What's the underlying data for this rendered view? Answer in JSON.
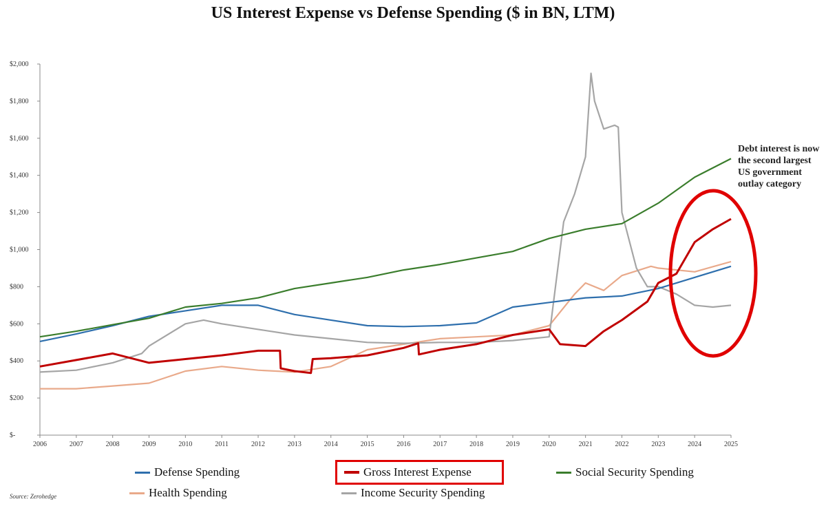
{
  "chart_data": {
    "type": "line",
    "title": "US Interest Expense vs Defense Spending ($ in BN, LTM)",
    "xlabel": "",
    "ylabel": "",
    "xlim": [
      2006,
      2025
    ],
    "ylim": [
      0,
      2000
    ],
    "y_ticks": [
      0,
      200,
      400,
      600,
      800,
      1000,
      1200,
      1400,
      1600,
      1800,
      2000
    ],
    "y_tick_labels": [
      "$-",
      "$200",
      "$400",
      "$600",
      "$800",
      "$1,000",
      "$1,200",
      "$1,400",
      "$1,600",
      "$1,800",
      "$2,000"
    ],
    "x_tick_labels": [
      "2006",
      "2007",
      "2008",
      "2009",
      "2010",
      "2011",
      "2012",
      "2013",
      "2014",
      "2015",
      "2016",
      "2017",
      "2018",
      "2019",
      "2020",
      "2021",
      "2022",
      "2023",
      "2024",
      "2025"
    ],
    "annotation": "Debt interest is now the second largest US government outlay category",
    "highlight": "red ellipse around 2023.5–2025 region",
    "series": [
      {
        "name": "Defense Spending",
        "color": "#2e6fad",
        "x": [
          2006,
          2007,
          2008,
          2009,
          2010,
          2011,
          2012,
          2013,
          2014,
          2015,
          2016,
          2017,
          2018,
          2019,
          2020,
          2021,
          2022,
          2023,
          2024,
          2025
        ],
        "values": [
          505,
          545,
          590,
          640,
          670,
          700,
          700,
          650,
          620,
          590,
          585,
          590,
          605,
          690,
          715,
          740,
          750,
          790,
          850,
          910
        ]
      },
      {
        "name": "Gross Interest Expense",
        "color": "#c00000",
        "x": [
          2006,
          2007,
          2008,
          2009,
          2010,
          2011,
          2012,
          2012.6,
          2012.62,
          2013,
          2013.45,
          2013.5,
          2014,
          2015,
          2016,
          2016.4,
          2016.42,
          2017,
          2018,
          2019,
          2020,
          2020.3,
          2021,
          2021.5,
          2022,
          2022.7,
          2023,
          2023.5,
          2024,
          2024.5,
          2025
        ],
        "values": [
          370,
          405,
          440,
          390,
          410,
          430,
          455,
          455,
          360,
          345,
          335,
          410,
          415,
          430,
          470,
          495,
          435,
          460,
          490,
          540,
          570,
          490,
          480,
          560,
          620,
          720,
          820,
          870,
          1040,
          1110,
          1165
        ]
      },
      {
        "name": "Social Security Spending",
        "color": "#3a7d2c",
        "x": [
          2006,
          2007,
          2008,
          2009,
          2010,
          2011,
          2012,
          2013,
          2014,
          2015,
          2016,
          2017,
          2018,
          2019,
          2020,
          2021,
          2022,
          2023,
          2024,
          2025
        ],
        "values": [
          530,
          560,
          595,
          630,
          690,
          710,
          740,
          790,
          820,
          850,
          890,
          920,
          955,
          990,
          1060,
          1110,
          1140,
          1250,
          1390,
          1490
        ]
      },
      {
        "name": "Health Spending",
        "color": "#e9a98a",
        "x": [
          2006,
          2007,
          2008,
          2009,
          2010,
          2011,
          2012,
          2013,
          2014,
          2015,
          2016,
          2017,
          2018,
          2019,
          2020,
          2020.7,
          2021,
          2021.5,
          2022,
          2022.8,
          2023,
          2024,
          2025
        ],
        "values": [
          250,
          250,
          265,
          280,
          345,
          370,
          350,
          340,
          370,
          460,
          490,
          520,
          530,
          540,
          590,
          760,
          820,
          780,
          860,
          910,
          900,
          880,
          935
        ]
      },
      {
        "name": "Income Security Spending",
        "color": "#a5a5a5",
        "x": [
          2006,
          2007,
          2008,
          2008.8,
          2009,
          2010,
          2010.5,
          2011,
          2012,
          2013,
          2014,
          2015,
          2016,
          2017,
          2018,
          2019,
          2020,
          2020.4,
          2020.7,
          2021,
          2021.15,
          2021.25,
          2021.5,
          2021.8,
          2021.9,
          2022,
          2022.4,
          2022.7,
          2023,
          2023.5,
          2024,
          2024.5,
          2025
        ],
        "values": [
          340,
          350,
          390,
          440,
          480,
          600,
          620,
          600,
          570,
          540,
          520,
          500,
          495,
          500,
          500,
          510,
          530,
          1150,
          1300,
          1500,
          1950,
          1800,
          1650,
          1670,
          1660,
          1200,
          900,
          800,
          800,
          760,
          700,
          690,
          700
        ]
      }
    ]
  },
  "legend": {
    "defense": "Defense Spending",
    "interest": "Gross Interest Expense",
    "social": "Social Security Spending",
    "health": "Health Spending",
    "income": "Income Security Spending"
  },
  "source": "Source: Zerohedge"
}
